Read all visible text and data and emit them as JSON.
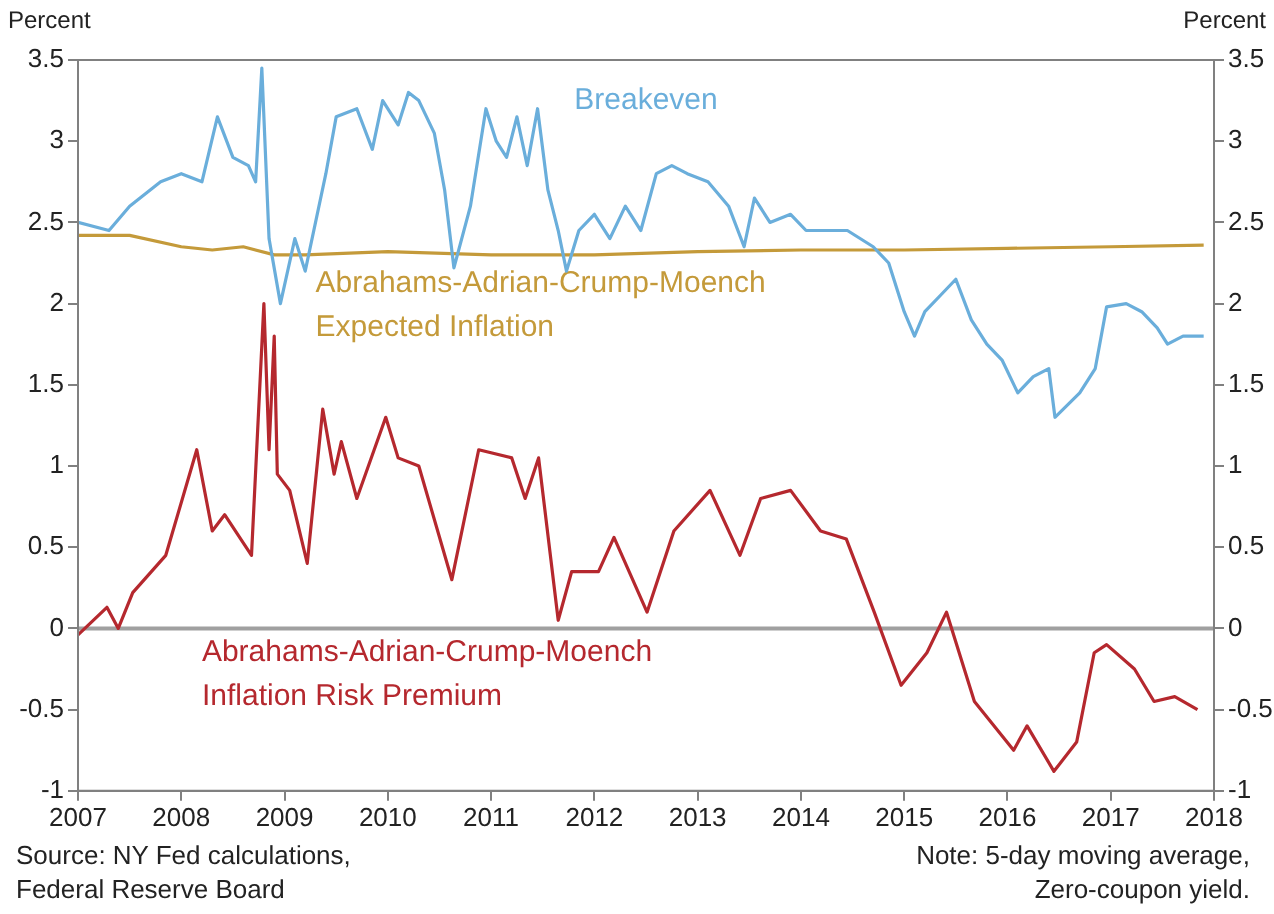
{
  "chart_data": {
    "type": "line",
    "ylabel": "Percent",
    "y2label": "Percent",
    "xlim": [
      2007,
      2018
    ],
    "xticks": [
      2007,
      2008,
      2009,
      2010,
      2011,
      2012,
      2013,
      2014,
      2015,
      2016,
      2017,
      2018
    ],
    "ylim": [
      -1,
      3.5
    ],
    "yticks": [
      -1,
      -0.5,
      0,
      0.5,
      1,
      1.5,
      2,
      2.5,
      3,
      3.5
    ],
    "y2lim": [
      -1,
      3.5
    ],
    "y2ticks": [
      -1,
      -0.5,
      0,
      0.5,
      1,
      1.5,
      2,
      2.5,
      3,
      3.5
    ],
    "grid": false,
    "legend": false,
    "marker": "none",
    "line_style": "solid",
    "ref_lines": [
      {
        "axis": "y",
        "value": 0,
        "color": "#a0a0a0"
      }
    ],
    "annotations": [
      "Source: NY Fed calculations, Federal Reserve Board",
      "Note: 5-day moving average, Zero-coupon yield."
    ],
    "series": [
      {
        "name": "Breakeven",
        "color": "#6aaedb",
        "x": [
          2007.0,
          2007.3,
          2007.5,
          2007.8,
          2008.0,
          2008.2,
          2008.35,
          2008.5,
          2008.65,
          2008.72,
          2008.78,
          2008.85,
          2008.96,
          2009.1,
          2009.2,
          2009.4,
          2009.5,
          2009.7,
          2009.85,
          2009.95,
          2010.1,
          2010.2,
          2010.3,
          2010.45,
          2010.55,
          2010.64,
          2010.8,
          2010.95,
          2011.05,
          2011.15,
          2011.25,
          2011.35,
          2011.45,
          2011.55,
          2011.65,
          2011.73,
          2011.85,
          2012.0,
          2012.15,
          2012.3,
          2012.45,
          2012.6,
          2012.75,
          2012.9,
          2013.1,
          2013.3,
          2013.45,
          2013.55,
          2013.7,
          2013.9,
          2014.05,
          2014.25,
          2014.45,
          2014.7,
          2014.85,
          2015.0,
          2015.1,
          2015.2,
          2015.35,
          2015.5,
          2015.65,
          2015.8,
          2015.95,
          2016.1,
          2016.25,
          2016.4,
          2016.46,
          2016.7,
          2016.85,
          2016.96,
          2017.15,
          2017.3,
          2017.45,
          2017.55,
          2017.7,
          2017.9
        ],
        "values": [
          2.5,
          2.45,
          2.6,
          2.75,
          2.8,
          2.75,
          3.15,
          2.9,
          2.85,
          2.75,
          3.45,
          2.4,
          2.0,
          2.4,
          2.2,
          2.8,
          3.15,
          3.2,
          2.95,
          3.25,
          3.1,
          3.3,
          3.25,
          3.05,
          2.7,
          2.22,
          2.6,
          3.2,
          3.0,
          2.9,
          3.15,
          2.85,
          3.2,
          2.7,
          2.45,
          2.2,
          2.45,
          2.55,
          2.4,
          2.6,
          2.45,
          2.8,
          2.85,
          2.8,
          2.75,
          2.6,
          2.35,
          2.65,
          2.5,
          2.55,
          2.45,
          2.45,
          2.45,
          2.35,
          2.25,
          1.95,
          1.8,
          1.95,
          2.05,
          2.15,
          1.9,
          1.75,
          1.65,
          1.45,
          1.55,
          1.6,
          1.3,
          1.45,
          1.6,
          1.98,
          2.0,
          1.95,
          1.85,
          1.75,
          1.8,
          1.8
        ]
      },
      {
        "name": "Abrahams-Adrian-Crump-Moench Expected Inflation",
        "color": "#c49a3a",
        "x": [
          2007.0,
          2007.5,
          2008.0,
          2008.3,
          2008.6,
          2008.9,
          2009.2,
          2010.0,
          2011.0,
          2012.0,
          2013.0,
          2014.0,
          2015.0,
          2016.0,
          2017.0,
          2017.9
        ],
        "values": [
          2.42,
          2.42,
          2.35,
          2.33,
          2.35,
          2.3,
          2.3,
          2.32,
          2.3,
          2.3,
          2.32,
          2.33,
          2.33,
          2.34,
          2.35,
          2.36
        ]
      },
      {
        "name": "Abrahams-Adrian-Crump-Moench Inflation Risk Premium",
        "color": "#b5282e",
        "x": [
          2007.0,
          2007.28,
          2007.39,
          2007.53,
          2007.85,
          2008.15,
          2008.3,
          2008.42,
          2008.68,
          2008.8,
          2008.85,
          2008.9,
          2008.93,
          2009.05,
          2009.22,
          2009.37,
          2009.48,
          2009.55,
          2009.7,
          2009.98,
          2010.1,
          2010.3,
          2010.62,
          2010.88,
          2011.2,
          2011.33,
          2011.46,
          2011.65,
          2011.78,
          2012.04,
          2012.19,
          2012.51,
          2012.77,
          2013.12,
          2013.41,
          2013.61,
          2013.9,
          2014.19,
          2014.44,
          2014.71,
          2014.97,
          2015.22,
          2015.41,
          2015.68,
          2016.06,
          2016.19,
          2016.45,
          2016.67,
          2016.84,
          2016.96,
          2017.23,
          2017.42,
          2017.62,
          2017.84
        ],
        "values": [
          -0.04,
          0.13,
          0.0,
          0.22,
          0.45,
          1.1,
          0.6,
          0.7,
          0.45,
          2.0,
          1.1,
          1.8,
          0.95,
          0.85,
          0.4,
          1.35,
          0.95,
          1.15,
          0.8,
          1.3,
          1.05,
          1.0,
          0.3,
          1.1,
          1.05,
          0.8,
          1.05,
          0.05,
          0.35,
          0.35,
          0.56,
          0.1,
          0.6,
          0.85,
          0.45,
          0.8,
          0.85,
          0.6,
          0.55,
          0.1,
          -0.35,
          -0.15,
          0.1,
          -0.45,
          -0.75,
          -0.6,
          -0.88,
          -0.7,
          -0.15,
          -0.1,
          -0.25,
          -0.45,
          -0.42,
          -0.5
        ]
      }
    ]
  }
}
